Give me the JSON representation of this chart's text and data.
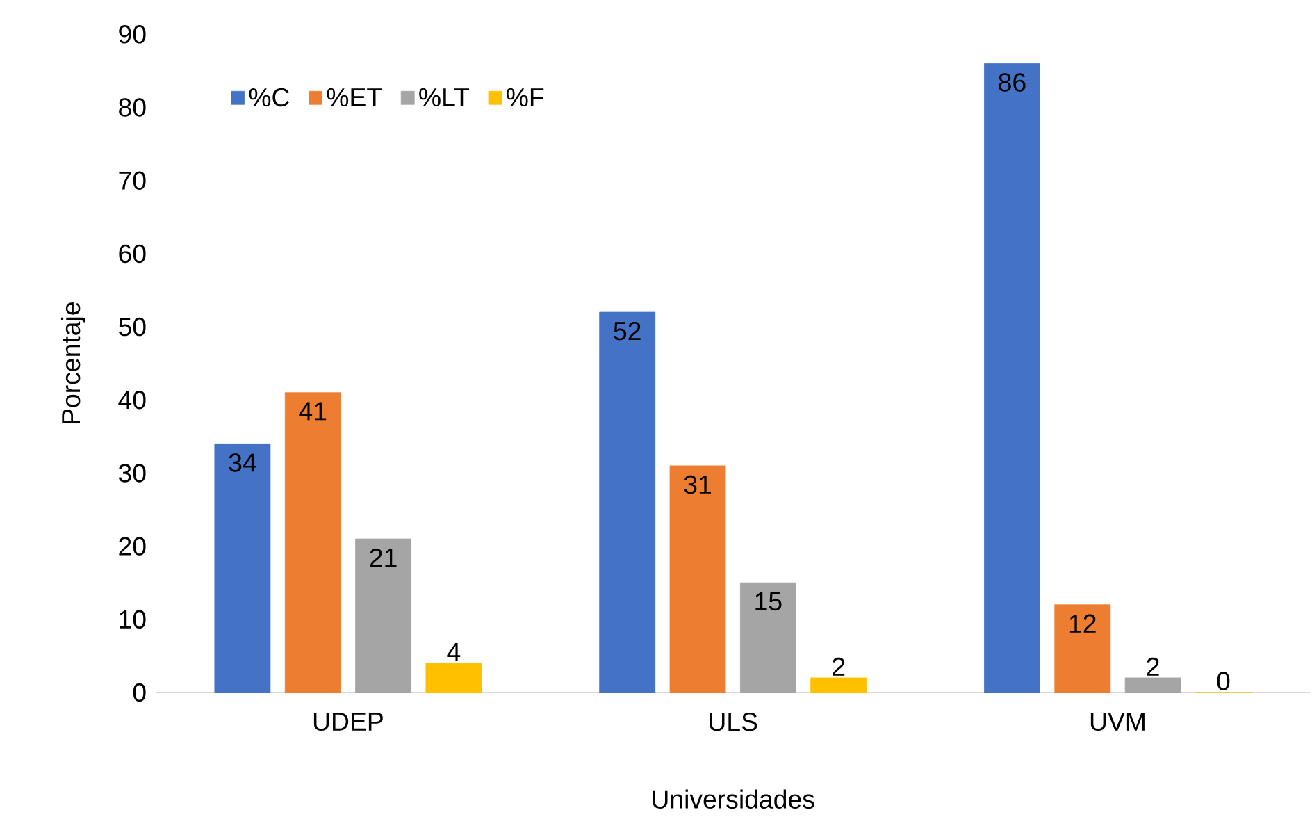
{
  "chart_data": {
    "type": "bar",
    "xlabel": "Universidades",
    "ylabel": "Porcentaje",
    "categories": [
      "UDEP",
      "ULS",
      "UVM"
    ],
    "series": [
      {
        "name": "%C",
        "color": "#4472c4",
        "values": [
          34,
          52,
          86
        ]
      },
      {
        "name": "%ET",
        "color": "#ed7d31",
        "values": [
          41,
          31,
          12
        ]
      },
      {
        "name": "%LT",
        "color": "#a5a5a5",
        "values": [
          21,
          15,
          2
        ]
      },
      {
        "name": "%F",
        "color": "#ffc000",
        "values": [
          4,
          2,
          0
        ]
      }
    ],
    "ylim": [
      0,
      90
    ],
    "yticks": [
      0,
      10,
      20,
      30,
      40,
      50,
      60,
      70,
      80,
      90
    ],
    "data_labels": true,
    "legend": "top left",
    "grid": false
  }
}
